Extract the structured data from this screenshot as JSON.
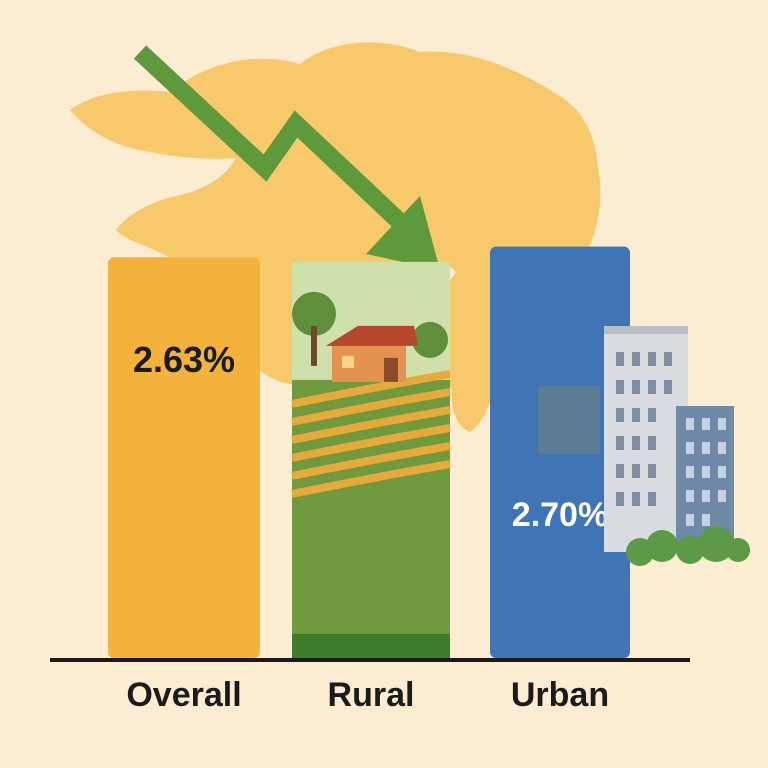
{
  "chart_data": {
    "type": "bar",
    "title": "",
    "xlabel": "",
    "ylabel": "",
    "categories": [
      "Overall",
      "Rural",
      "Urban"
    ],
    "values": [
      2.63,
      2.6,
      2.7
    ],
    "data_labels": [
      "2.63%",
      "",
      "2.70%"
    ],
    "ylim": [
      0,
      3.4
    ],
    "grid": false,
    "legend": "none"
  },
  "colors": {
    "background": "#fbecd2",
    "overall_bar": "#f3b23c",
    "rural_bar": "#7fa353",
    "urban_bar": "#3f74b5",
    "map": "#f7c96a",
    "trend_arrow": "#5e9a3c",
    "axis": "#1b1b1b"
  },
  "decor": {
    "map_icon": "state-map-silhouette",
    "trend_icon": "downward-trend-arrow",
    "rural_icon": "farmhouse-field-scene",
    "urban_icon": "city-buildings"
  }
}
